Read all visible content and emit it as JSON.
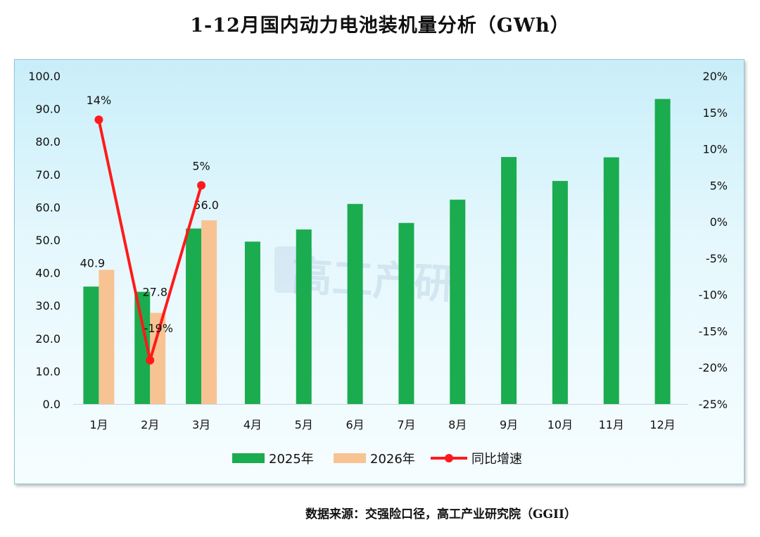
{
  "title": "1-12月国内动力电池装机量分析（GWh）",
  "source": "数据来源：交强险口径，高工产业研究院（GGII）",
  "watermark": "高工产研",
  "colors": {
    "series_2025": "#1aac4e",
    "series_2026": "#f8c393",
    "yoy_line": "#ff1a1a",
    "axis_text": "#111111"
  },
  "chart_data": {
    "type": "bar",
    "categories": [
      "1月",
      "2月",
      "3月",
      "4月",
      "5月",
      "6月",
      "7月",
      "8月",
      "9月",
      "10月",
      "11月",
      "12月"
    ],
    "series": [
      {
        "name": "2025年",
        "type": "bar",
        "axis": "left",
        "values": [
          35.8,
          34.2,
          53.5,
          49.5,
          53.2,
          61.0,
          55.2,
          62.3,
          75.3,
          68.0,
          75.2,
          93.0
        ]
      },
      {
        "name": "2026年",
        "type": "bar",
        "axis": "left",
        "values": [
          40.9,
          27.8,
          56.0,
          null,
          null,
          null,
          null,
          null,
          null,
          null,
          null,
          null
        ],
        "data_labels": [
          "40.9",
          "27.8",
          "56.0",
          null,
          null,
          null,
          null,
          null,
          null,
          null,
          null,
          null
        ]
      },
      {
        "name": "同比增速",
        "type": "line",
        "axis": "right",
        "values": [
          14,
          -19,
          5,
          null,
          null,
          null,
          null,
          null,
          null,
          null,
          null,
          null
        ],
        "data_labels": [
          "14%",
          "-19%",
          "5%",
          null,
          null,
          null,
          null,
          null,
          null,
          null,
          null,
          null
        ]
      }
    ],
    "ylim_left": [
      0,
      100
    ],
    "yticks_left": [
      "0.0",
      "10.0",
      "20.0",
      "30.0",
      "40.0",
      "50.0",
      "60.0",
      "70.0",
      "80.0",
      "90.0",
      "100.0"
    ],
    "ylim_right": [
      -25,
      20
    ],
    "yticks_right": [
      "-25%",
      "-20%",
      "-15%",
      "-10%",
      "-5%",
      "0%",
      "5%",
      "10%",
      "15%",
      "20%"
    ],
    "legend_position": "bottom",
    "grid": false
  }
}
